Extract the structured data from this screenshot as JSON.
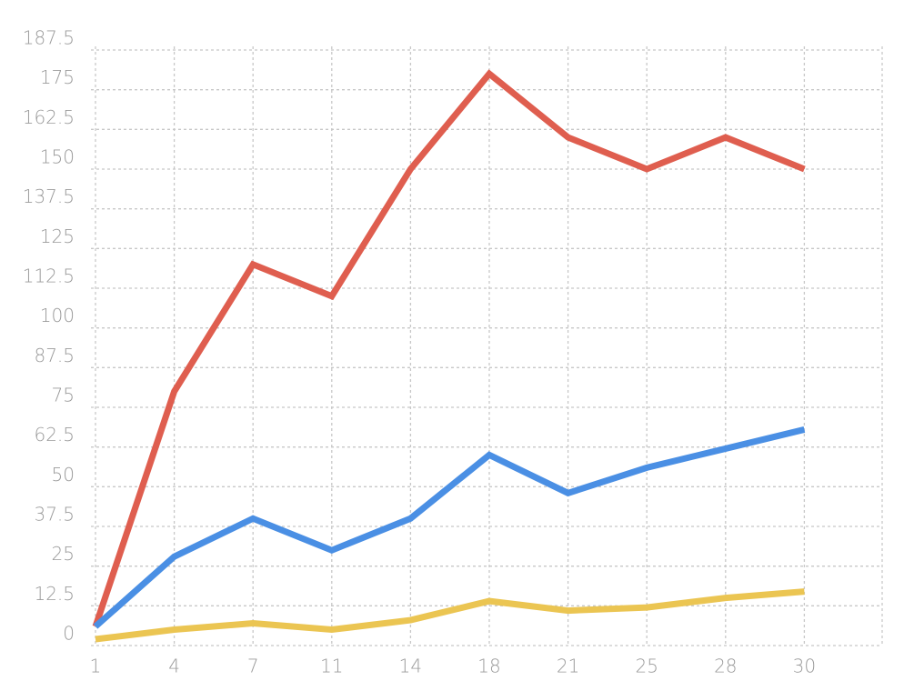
{
  "chart_data": {
    "type": "line",
    "categories": [
      "1",
      "4",
      "7",
      "11",
      "14",
      "18",
      "21",
      "25",
      "28",
      "30"
    ],
    "series": [
      {
        "color": "#df5e4f",
        "values": [
          6,
          80,
          120,
          110,
          150,
          180,
          160,
          150,
          160,
          150
        ]
      },
      {
        "color": "#4a8fe4",
        "values": [
          6,
          28,
          40,
          30,
          40,
          60,
          48,
          56,
          62,
          68
        ]
      },
      {
        "color": "#ebc552",
        "values": [
          2,
          5,
          7,
          5,
          8,
          14,
          11,
          12,
          15,
          17
        ]
      }
    ],
    "ylim": [
      0,
      187.5
    ],
    "yticks": [
      0,
      12.5,
      25,
      37.5,
      50,
      62.5,
      75,
      87.5,
      100,
      112.5,
      125,
      137.5,
      150,
      162.5,
      175,
      187.5
    ],
    "grid": true
  }
}
